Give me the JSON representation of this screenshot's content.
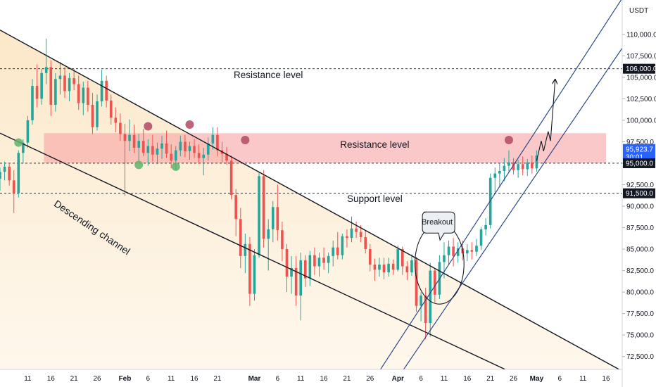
{
  "chart_data": {
    "type": "candlestick",
    "currency": "USDT",
    "y_ticks": [
      72500,
      75000,
      77500,
      80000,
      82500,
      85000,
      87500,
      90000,
      92500,
      95000,
      97500,
      100000,
      102500,
      105000,
      107500,
      110000
    ],
    "y_tick_labels": [
      "72,500.0",
      "75,000.0",
      "77,500.0",
      "80,000.0",
      "82,500.0",
      "85,000.0",
      "87,500.0",
      "90,000.0",
      "92,500.0",
      "95,000.0",
      "97,500.0",
      "100,000.0",
      "102,500.0",
      "105,000.0",
      "107,500.0",
      "110,000.0"
    ],
    "ylim": [
      71000,
      114000
    ],
    "x_ticks": [
      {
        "label": "11",
        "day": 11
      },
      {
        "label": "16",
        "day": 16
      },
      {
        "label": "21",
        "day": 21
      },
      {
        "label": "26",
        "day": 26
      },
      {
        "label": "Feb",
        "day": 32,
        "bold": true
      },
      {
        "label": "6",
        "day": 37
      },
      {
        "label": "11",
        "day": 42
      },
      {
        "label": "16",
        "day": 47
      },
      {
        "label": "21",
        "day": 52
      },
      {
        "label": "Mar",
        "day": 60,
        "bold": true
      },
      {
        "label": "6",
        "day": 65
      },
      {
        "label": "11",
        "day": 70
      },
      {
        "label": "16",
        "day": 75
      },
      {
        "label": "21",
        "day": 80
      },
      {
        "label": "26",
        "day": 85
      },
      {
        "label": "Apr",
        "day": 91,
        "bold": true
      },
      {
        "label": "6",
        "day": 96
      },
      {
        "label": "11",
        "day": 101
      },
      {
        "label": "16",
        "day": 106
      },
      {
        "label": "21",
        "day": 111
      },
      {
        "label": "26",
        "day": 116
      },
      {
        "label": "May",
        "day": 121,
        "bold": true
      },
      {
        "label": "6",
        "day": 126
      },
      {
        "label": "11",
        "day": 131
      },
      {
        "label": "16",
        "day": 136
      }
    ],
    "xlim": [
      5,
      139.5
    ],
    "price_tags": [
      {
        "label": "106,000.0",
        "value": 106000,
        "style": "dark"
      },
      {
        "label": "95,923.7",
        "sub": "30:01",
        "value": 95923.7,
        "style": "blue"
      },
      {
        "label": "95,000.0",
        "value": 95000,
        "style": "dark"
      },
      {
        "label": "91,500.0",
        "value": 91500,
        "style": "dark"
      }
    ],
    "horizontal_levels": [
      106000,
      95000,
      91500
    ],
    "resistance_zone": [
      95000,
      98500
    ],
    "candles": [
      {
        "d": 5,
        "o": 93200,
        "h": 94500,
        "l": 91800,
        "c": 94000
      },
      {
        "d": 6,
        "o": 94000,
        "h": 95200,
        "l": 93000,
        "c": 94600
      },
      {
        "d": 7,
        "o": 94600,
        "h": 95000,
        "l": 92400,
        "c": 93000
      },
      {
        "d": 8,
        "o": 93000,
        "h": 94200,
        "l": 89200,
        "c": 91500
      },
      {
        "d": 9,
        "o": 91500,
        "h": 96500,
        "l": 91000,
        "c": 96200
      },
      {
        "d": 10,
        "o": 96200,
        "h": 97800,
        "l": 95000,
        "c": 97400
      },
      {
        "d": 11,
        "o": 97400,
        "h": 100500,
        "l": 96800,
        "c": 100000
      },
      {
        "d": 12,
        "o": 100000,
        "h": 104800,
        "l": 99500,
        "c": 104000
      },
      {
        "d": 13,
        "o": 104000,
        "h": 106500,
        "l": 101500,
        "c": 102500
      },
      {
        "d": 14,
        "o": 102500,
        "h": 106000,
        "l": 101800,
        "c": 105500
      },
      {
        "d": 15,
        "o": 105500,
        "h": 109500,
        "l": 104200,
        "c": 106200
      },
      {
        "d": 16,
        "o": 106200,
        "h": 107000,
        "l": 100500,
        "c": 101800
      },
      {
        "d": 17,
        "o": 101800,
        "h": 105500,
        "l": 101000,
        "c": 104800
      },
      {
        "d": 18,
        "o": 104800,
        "h": 106800,
        "l": 103000,
        "c": 105200
      },
      {
        "d": 19,
        "o": 105200,
        "h": 106200,
        "l": 102600,
        "c": 103400
      },
      {
        "d": 20,
        "o": 103400,
        "h": 105500,
        "l": 102200,
        "c": 104900
      },
      {
        "d": 21,
        "o": 104900,
        "h": 106000,
        "l": 103500,
        "c": 104200
      },
      {
        "d": 22,
        "o": 104200,
        "h": 105200,
        "l": 101200,
        "c": 102000
      },
      {
        "d": 23,
        "o": 102000,
        "h": 104500,
        "l": 100600,
        "c": 103800
      },
      {
        "d": 24,
        "o": 103800,
        "h": 104600,
        "l": 101000,
        "c": 101800
      },
      {
        "d": 25,
        "o": 101800,
        "h": 103200,
        "l": 98400,
        "c": 99200
      },
      {
        "d": 26,
        "o": 99200,
        "h": 103000,
        "l": 98800,
        "c": 102200
      },
      {
        "d": 27,
        "o": 102200,
        "h": 105900,
        "l": 101600,
        "c": 104600
      },
      {
        "d": 28,
        "o": 104600,
        "h": 105200,
        "l": 101500,
        "c": 102300
      },
      {
        "d": 29,
        "o": 102300,
        "h": 103000,
        "l": 99500,
        "c": 100300
      },
      {
        "d": 30,
        "o": 100300,
        "h": 101500,
        "l": 98600,
        "c": 99700
      },
      {
        "d": 31,
        "o": 99700,
        "h": 100800,
        "l": 97600,
        "c": 98400
      },
      {
        "d": 32,
        "o": 98400,
        "h": 99600,
        "l": 91200,
        "c": 97600
      },
      {
        "d": 33,
        "o": 97600,
        "h": 100100,
        "l": 96400,
        "c": 98300
      },
      {
        "d": 34,
        "o": 98300,
        "h": 99500,
        "l": 96200,
        "c": 96800
      },
      {
        "d": 35,
        "o": 96800,
        "h": 98400,
        "l": 95300,
        "c": 97600
      },
      {
        "d": 36,
        "o": 97600,
        "h": 99000,
        "l": 95800,
        "c": 96200
      },
      {
        "d": 37,
        "o": 96200,
        "h": 97800,
        "l": 94700,
        "c": 97000
      },
      {
        "d": 38,
        "o": 97000,
        "h": 98300,
        "l": 95200,
        "c": 96000
      },
      {
        "d": 39,
        "o": 96000,
        "h": 97400,
        "l": 94900,
        "c": 96700
      },
      {
        "d": 40,
        "o": 96700,
        "h": 98200,
        "l": 95500,
        "c": 97300
      },
      {
        "d": 41,
        "o": 97300,
        "h": 98800,
        "l": 95600,
        "c": 96100
      },
      {
        "d": 42,
        "o": 96100,
        "h": 97200,
        "l": 94400,
        "c": 95300
      },
      {
        "d": 43,
        "o": 95300,
        "h": 97000,
        "l": 94200,
        "c": 96500
      },
      {
        "d": 44,
        "o": 96500,
        "h": 98200,
        "l": 95800,
        "c": 97500
      },
      {
        "d": 45,
        "o": 97500,
        "h": 98300,
        "l": 95700,
        "c": 96400
      },
      {
        "d": 46,
        "o": 96400,
        "h": 97500,
        "l": 95400,
        "c": 97000
      },
      {
        "d": 47,
        "o": 97000,
        "h": 97800,
        "l": 95600,
        "c": 96200
      },
      {
        "d": 48,
        "o": 96200,
        "h": 97200,
        "l": 94900,
        "c": 95600
      },
      {
        "d": 49,
        "o": 95600,
        "h": 96800,
        "l": 93600,
        "c": 96000
      },
      {
        "d": 50,
        "o": 96000,
        "h": 98000,
        "l": 95300,
        "c": 97300
      },
      {
        "d": 51,
        "o": 97300,
        "h": 99200,
        "l": 96600,
        "c": 98300
      },
      {
        "d": 52,
        "o": 98300,
        "h": 99200,
        "l": 95800,
        "c": 96500
      },
      {
        "d": 53,
        "o": 96500,
        "h": 97500,
        "l": 95100,
        "c": 96100
      },
      {
        "d": 54,
        "o": 96100,
        "h": 96900,
        "l": 94800,
        "c": 95300
      },
      {
        "d": 55,
        "o": 95300,
        "h": 95900,
        "l": 90800,
        "c": 91300
      },
      {
        "d": 56,
        "o": 91300,
        "h": 92000,
        "l": 86500,
        "c": 88500
      },
      {
        "d": 57,
        "o": 88500,
        "h": 89800,
        "l": 82800,
        "c": 84200
      },
      {
        "d": 58,
        "o": 84200,
        "h": 86800,
        "l": 82200,
        "c": 85600
      },
      {
        "d": 59,
        "o": 85600,
        "h": 86400,
        "l": 78400,
        "c": 79800
      },
      {
        "d": 60,
        "o": 79800,
        "h": 85000,
        "l": 79000,
        "c": 84300
      },
      {
        "d": 61,
        "o": 84300,
        "h": 94000,
        "l": 84000,
        "c": 93500
      },
      {
        "d": 62,
        "o": 93500,
        "h": 94200,
        "l": 85200,
        "c": 86200
      },
      {
        "d": 63,
        "o": 86200,
        "h": 88500,
        "l": 82500,
        "c": 87300
      },
      {
        "d": 64,
        "o": 87300,
        "h": 90600,
        "l": 85800,
        "c": 89900
      },
      {
        "d": 65,
        "o": 89900,
        "h": 92500,
        "l": 86000,
        "c": 87200
      },
      {
        "d": 66,
        "o": 87200,
        "h": 88200,
        "l": 83600,
        "c": 85000
      },
      {
        "d": 67,
        "o": 85000,
        "h": 85600,
        "l": 80000,
        "c": 81800
      },
      {
        "d": 68,
        "o": 81800,
        "h": 84200,
        "l": 79800,
        "c": 82800
      },
      {
        "d": 69,
        "o": 82800,
        "h": 84200,
        "l": 78400,
        "c": 79600
      },
      {
        "d": 70,
        "o": 79600,
        "h": 84600,
        "l": 76700,
        "c": 83700
      },
      {
        "d": 71,
        "o": 83700,
        "h": 84300,
        "l": 80600,
        "c": 81600
      },
      {
        "d": 72,
        "o": 81600,
        "h": 84800,
        "l": 80700,
        "c": 84300
      },
      {
        "d": 73,
        "o": 84300,
        "h": 85200,
        "l": 82000,
        "c": 83000
      },
      {
        "d": 74,
        "o": 83000,
        "h": 84600,
        "l": 81800,
        "c": 84000
      },
      {
        "d": 75,
        "o": 84000,
        "h": 85200,
        "l": 82600,
        "c": 83400
      },
      {
        "d": 76,
        "o": 83400,
        "h": 84600,
        "l": 82200,
        "c": 84200
      },
      {
        "d": 77,
        "o": 84200,
        "h": 86000,
        "l": 83000,
        "c": 85200
      },
      {
        "d": 78,
        "o": 85200,
        "h": 87000,
        "l": 83800,
        "c": 84300
      },
      {
        "d": 79,
        "o": 84300,
        "h": 86800,
        "l": 83800,
        "c": 86500
      },
      {
        "d": 80,
        "o": 86500,
        "h": 87300,
        "l": 85200,
        "c": 86300
      },
      {
        "d": 81,
        "o": 86300,
        "h": 88800,
        "l": 85800,
        "c": 87400
      },
      {
        "d": 82,
        "o": 87400,
        "h": 88200,
        "l": 86300,
        "c": 87000
      },
      {
        "d": 83,
        "o": 87000,
        "h": 87800,
        "l": 85800,
        "c": 86400
      },
      {
        "d": 84,
        "o": 86400,
        "h": 87200,
        "l": 84500,
        "c": 85000
      },
      {
        "d": 85,
        "o": 85000,
        "h": 85600,
        "l": 82400,
        "c": 83200
      },
      {
        "d": 86,
        "o": 83200,
        "h": 83900,
        "l": 81300,
        "c": 82600
      },
      {
        "d": 87,
        "o": 82600,
        "h": 84000,
        "l": 81800,
        "c": 83200
      },
      {
        "d": 88,
        "o": 83200,
        "h": 84000,
        "l": 81500,
        "c": 82300
      },
      {
        "d": 89,
        "o": 82300,
        "h": 84000,
        "l": 81800,
        "c": 83300
      },
      {
        "d": 90,
        "o": 83300,
        "h": 83800,
        "l": 82000,
        "c": 82600
      },
      {
        "d": 91,
        "o": 82600,
        "h": 85400,
        "l": 82400,
        "c": 85000
      },
      {
        "d": 92,
        "o": 85000,
        "h": 85300,
        "l": 82000,
        "c": 83000
      },
      {
        "d": 93,
        "o": 83000,
        "h": 83600,
        "l": 81400,
        "c": 82300
      },
      {
        "d": 94,
        "o": 82300,
        "h": 84400,
        "l": 81900,
        "c": 83700
      },
      {
        "d": 95,
        "o": 83700,
        "h": 84100,
        "l": 77700,
        "c": 78400
      },
      {
        "d": 96,
        "o": 78400,
        "h": 80000,
        "l": 76600,
        "c": 79600
      },
      {
        "d": 97,
        "o": 79600,
        "h": 80500,
        "l": 74500,
        "c": 76400
      },
      {
        "d": 98,
        "o": 76400,
        "h": 83400,
        "l": 74800,
        "c": 82500
      },
      {
        "d": 99,
        "o": 82500,
        "h": 82800,
        "l": 78800,
        "c": 79700
      },
      {
        "d": 100,
        "o": 79700,
        "h": 84300,
        "l": 79200,
        "c": 83500
      },
      {
        "d": 101,
        "o": 83500,
        "h": 85800,
        "l": 81600,
        "c": 84300
      },
      {
        "d": 102,
        "o": 84300,
        "h": 86000,
        "l": 83200,
        "c": 85300
      },
      {
        "d": 103,
        "o": 85300,
        "h": 86300,
        "l": 83000,
        "c": 84200
      },
      {
        "d": 104,
        "o": 84200,
        "h": 85800,
        "l": 83400,
        "c": 85100
      },
      {
        "d": 105,
        "o": 85100,
        "h": 86000,
        "l": 83700,
        "c": 84500
      },
      {
        "d": 106,
        "o": 84500,
        "h": 85600,
        "l": 83600,
        "c": 84900
      },
      {
        "d": 107,
        "o": 84900,
        "h": 85800,
        "l": 83800,
        "c": 84700
      },
      {
        "d": 108,
        "o": 84700,
        "h": 86200,
        "l": 84200,
        "c": 85400
      },
      {
        "d": 109,
        "o": 85400,
        "h": 87600,
        "l": 84900,
        "c": 87300
      },
      {
        "d": 110,
        "o": 87300,
        "h": 88600,
        "l": 86600,
        "c": 87800
      },
      {
        "d": 111,
        "o": 87800,
        "h": 93800,
        "l": 87400,
        "c": 93300
      },
      {
        "d": 112,
        "o": 93300,
        "h": 94500,
        "l": 91600,
        "c": 93800
      },
      {
        "d": 113,
        "o": 93800,
        "h": 95000,
        "l": 92200,
        "c": 94100
      },
      {
        "d": 114,
        "o": 94100,
        "h": 95600,
        "l": 92900,
        "c": 94700
      },
      {
        "d": 115,
        "o": 94700,
        "h": 96500,
        "l": 93900,
        "c": 95100
      },
      {
        "d": 116,
        "o": 95100,
        "h": 95600,
        "l": 93700,
        "c": 94200
      },
      {
        "d": 117,
        "o": 94200,
        "h": 95400,
        "l": 93300,
        "c": 94900
      },
      {
        "d": 118,
        "o": 94900,
        "h": 95800,
        "l": 93600,
        "c": 94300
      },
      {
        "d": 119,
        "o": 94300,
        "h": 95500,
        "l": 93500,
        "c": 95100
      },
      {
        "d": 120,
        "o": 95100,
        "h": 95900,
        "l": 93800,
        "c": 94400
      },
      {
        "d": 121,
        "o": 94400,
        "h": 96500,
        "l": 94000,
        "c": 95900
      }
    ],
    "channel_lines": [
      {
        "name": "descending-upper",
        "from": [
          5,
          110500
        ],
        "to": [
          139.5,
          70800
        ],
        "color": "#131722"
      },
      {
        "name": "descending-lower",
        "from": [
          5,
          98500
        ],
        "to": [
          115,
          70800
        ],
        "color": "#131722"
      },
      {
        "name": "ascending-upper",
        "from": [
          87,
          70800
        ],
        "to": [
          139.5,
          114200
        ],
        "color": "#2e4a8a"
      },
      {
        "name": "ascending-lower",
        "from": [
          92,
          70800
        ],
        "to": [
          139.5,
          108400
        ],
        "color": "#2e4a8a"
      }
    ],
    "projection_path": [
      [
        121,
        95300
      ],
      [
        122,
        97600
      ],
      [
        122.5,
        96400
      ],
      [
        123.5,
        98700
      ],
      [
        124,
        97600
      ],
      [
        125,
        104700
      ]
    ],
    "red_dots": [
      [
        37,
        99300
      ],
      [
        46,
        99500
      ],
      [
        58,
        97700
      ],
      [
        115,
        97700
      ]
    ],
    "green_dots": [
      [
        9,
        97400
      ],
      [
        35,
        94800
      ],
      [
        43,
        94600
      ]
    ],
    "breakout_circle": {
      "center": [
        100,
        83300
      ],
      "rx_days": 5.3,
      "ry_price": 4700
    },
    "annotations": [
      {
        "name": "resistance-label-top",
        "text": "Resistance level",
        "d": 63,
        "v": 104900
      },
      {
        "name": "resistance-label-zone",
        "text": "Resistance level",
        "d": 86,
        "v": 96800
      },
      {
        "name": "support-label",
        "text": "Support level",
        "d": 86,
        "v": 90500
      },
      {
        "name": "channel-label",
        "text": "Descending channel",
        "d": 24.5,
        "v": 87200,
        "angle": 34
      },
      {
        "name": "breakout-label",
        "text": "Breakout",
        "d": 99.5,
        "v": 88100
      }
    ]
  }
}
